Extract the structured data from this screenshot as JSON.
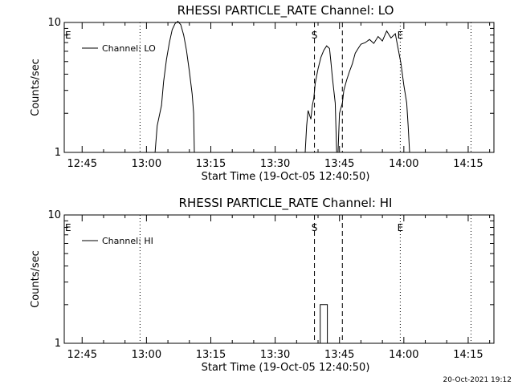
{
  "footer_timestamp": "20-Oct-2021 19:12",
  "chart_data": [
    {
      "type": "line",
      "title": "RHESSI PARTICLE_RATE Channel: LO",
      "xlabel": "Start Time (19-Oct-05 12:40:50)",
      "ylabel": "Counts/sec",
      "y_scale": "log",
      "ylim": [
        1,
        10
      ],
      "y_ticks": [
        "1",
        "10"
      ],
      "xlim": [
        "12:40:50",
        "14:21:00"
      ],
      "x_ticks": [
        "12:45",
        "13:00",
        "13:15",
        "13:30",
        "13:45",
        "14:00",
        "14:15"
      ],
      "legend": {
        "position": "top-left",
        "entries": [
          "Channel: LO"
        ]
      },
      "markers": [
        {
          "label": "E",
          "time": "12:40:50",
          "style": "none"
        },
        {
          "label": "",
          "time": "12:58:30",
          "style": "dotted"
        },
        {
          "label": "S",
          "time": "13:39:10",
          "style": "dashed"
        },
        {
          "label": "",
          "time": "13:45:40",
          "style": "dashed"
        },
        {
          "label": "E",
          "time": "13:59:10",
          "style": "dotted"
        },
        {
          "label": "",
          "time": "14:15:40",
          "style": "dotted"
        }
      ],
      "series": [
        {
          "name": "Channel: LO",
          "segments": [
            [
              [
                "13:02:00",
                1.0
              ],
              [
                "13:02:30",
                1.6
              ],
              [
                "13:03:30",
                2.3
              ],
              [
                "13:04:00",
                3.5
              ],
              [
                "13:04:40",
                5.2
              ],
              [
                "13:05:20",
                7.0
              ],
              [
                "13:06:00",
                8.8
              ],
              [
                "13:06:40",
                9.8
              ],
              [
                "13:07:20",
                10.2
              ],
              [
                "13:08:00",
                9.6
              ],
              [
                "13:08:40",
                8.0
              ],
              [
                "13:09:20",
                6.1
              ],
              [
                "13:10:00",
                4.2
              ],
              [
                "13:10:40",
                2.8
              ],
              [
                "13:11:00",
                2.0
              ],
              [
                "13:11:10",
                1.0
              ]
            ],
            [
              [
                "13:37:00",
                1.0
              ],
              [
                "13:37:20",
                1.6
              ],
              [
                "13:37:40",
                2.1
              ],
              [
                "13:38:20",
                1.8
              ],
              [
                "13:38:40",
                2.3
              ],
              [
                "13:39:00",
                2.6
              ],
              [
                "13:39:20",
                3.4
              ],
              [
                "13:40:00",
                4.4
              ],
              [
                "13:40:40",
                5.4
              ],
              [
                "13:41:20",
                6.1
              ],
              [
                "13:42:00",
                6.6
              ],
              [
                "13:42:40",
                6.3
              ],
              [
                "13:43:00",
                5.0
              ],
              [
                "13:43:20",
                3.8
              ],
              [
                "13:44:00",
                2.4
              ],
              [
                "13:44:20",
                1.0
              ]
            ],
            [
              [
                "13:44:40",
                1.0
              ],
              [
                "13:45:00",
                2.0
              ],
              [
                "13:45:40",
                2.4
              ],
              [
                "13:46:00",
                3.0
              ],
              [
                "13:46:40",
                3.6
              ],
              [
                "13:47:20",
                4.2
              ],
              [
                "13:48:00",
                4.8
              ],
              [
                "13:48:40",
                5.8
              ],
              [
                "13:49:20",
                6.3
              ],
              [
                "13:50:00",
                6.8
              ],
              [
                "13:51:00",
                7.0
              ],
              [
                "13:52:00",
                7.4
              ],
              [
                "13:53:00",
                6.9
              ],
              [
                "13:54:00",
                7.8
              ],
              [
                "13:55:00",
                7.2
              ],
              [
                "13:56:00",
                8.6
              ],
              [
                "13:57:00",
                7.6
              ],
              [
                "13:58:00",
                8.2
              ],
              [
                "13:58:40",
                6.3
              ],
              [
                "13:59:20",
                4.8
              ],
              [
                "14:00:00",
                3.3
              ],
              [
                "14:00:40",
                2.4
              ],
              [
                "14:01:00",
                1.6
              ],
              [
                "14:01:20",
                1.0
              ]
            ]
          ]
        }
      ]
    },
    {
      "type": "line",
      "title": "RHESSI PARTICLE_RATE Channel: HI",
      "xlabel": "Start Time (19-Oct-05 12:40:50)",
      "ylabel": "Counts/sec",
      "y_scale": "log",
      "ylim": [
        1,
        10
      ],
      "y_ticks": [
        "1",
        "10"
      ],
      "xlim": [
        "12:40:50",
        "14:21:00"
      ],
      "x_ticks": [
        "12:45",
        "13:00",
        "13:15",
        "13:30",
        "13:45",
        "14:00",
        "14:15"
      ],
      "legend": {
        "position": "top-left",
        "entries": [
          "Channel: HI"
        ]
      },
      "markers": [
        {
          "label": "E",
          "time": "12:40:50",
          "style": "none"
        },
        {
          "label": "",
          "time": "12:58:30",
          "style": "dotted"
        },
        {
          "label": "S",
          "time": "13:39:10",
          "style": "dashed"
        },
        {
          "label": "",
          "time": "13:45:40",
          "style": "dashed"
        },
        {
          "label": "E",
          "time": "13:59:10",
          "style": "dotted"
        },
        {
          "label": "",
          "time": "14:15:40",
          "style": "dotted"
        }
      ],
      "series": [
        {
          "name": "Channel: HI",
          "segments": [
            [
              [
                "13:40:30",
                1.0
              ],
              [
                "13:40:30",
                2.0
              ],
              [
                "13:42:10",
                2.0
              ],
              [
                "13:42:10",
                1.0
              ]
            ]
          ]
        }
      ]
    }
  ]
}
